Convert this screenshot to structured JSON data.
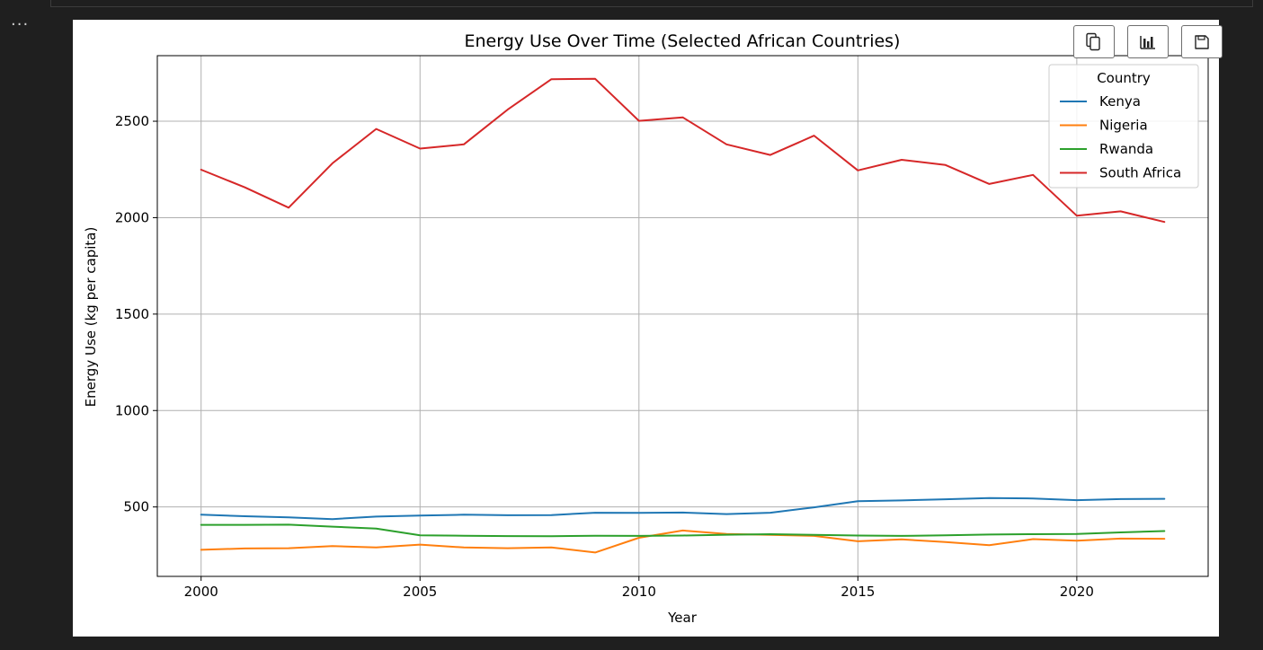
{
  "cell": {
    "more_label": "···"
  },
  "toolbar": {
    "copy_icon": "copy-icon",
    "chart_icon": "bar-chart-icon",
    "save_icon": "save-icon"
  },
  "chart_data": {
    "type": "line",
    "title": "Energy Use Over Time (Selected African Countries)",
    "xlabel": "Year",
    "ylabel": "Energy Use (kg per capita)",
    "xlim": [
      1999,
      2023
    ],
    "ylim": [
      140,
      2840
    ],
    "xticks": [
      2000,
      2005,
      2010,
      2015,
      2020
    ],
    "yticks": [
      500,
      1000,
      1500,
      2000,
      2500
    ],
    "grid": true,
    "legend": {
      "title": "Country",
      "placement": "top-right"
    },
    "x": [
      2000,
      2001,
      2002,
      2003,
      2004,
      2005,
      2006,
      2007,
      2008,
      2009,
      2010,
      2011,
      2012,
      2013,
      2014,
      2015,
      2016,
      2017,
      2018,
      2019,
      2020,
      2021,
      2022
    ],
    "series": [
      {
        "name": "Kenya",
        "color": "#1f77b4",
        "values": [
          460,
          452,
          446,
          437,
          450,
          455,
          460,
          457,
          458,
          470,
          469,
          471,
          463,
          470,
          498,
          530,
          534,
          540,
          546,
          544,
          535,
          541,
          542
        ]
      },
      {
        "name": "Nigeria",
        "color": "#ff7f0e",
        "values": [
          278,
          285,
          286,
          297,
          290,
          305,
          290,
          286,
          290,
          264,
          340,
          378,
          360,
          355,
          350,
          322,
          332,
          318,
          302,
          333,
          325,
          336,
          335
        ]
      },
      {
        "name": "Rwanda",
        "color": "#2ca02c",
        "values": [
          407,
          407,
          408,
          398,
          388,
          353,
          351,
          349,
          348,
          351,
          350,
          352,
          356,
          359,
          355,
          352,
          350,
          353,
          357,
          359,
          360,
          368,
          375
        ]
      },
      {
        "name": "South Africa",
        "color": "#d62728",
        "values": [
          2249,
          2157,
          2052,
          2282,
          2460,
          2358,
          2380,
          2560,
          2718,
          2720,
          2502,
          2520,
          2380,
          2325,
          2425,
          2245,
          2300,
          2273,
          2175,
          2222,
          2010,
          2033,
          1978
        ]
      }
    ]
  }
}
